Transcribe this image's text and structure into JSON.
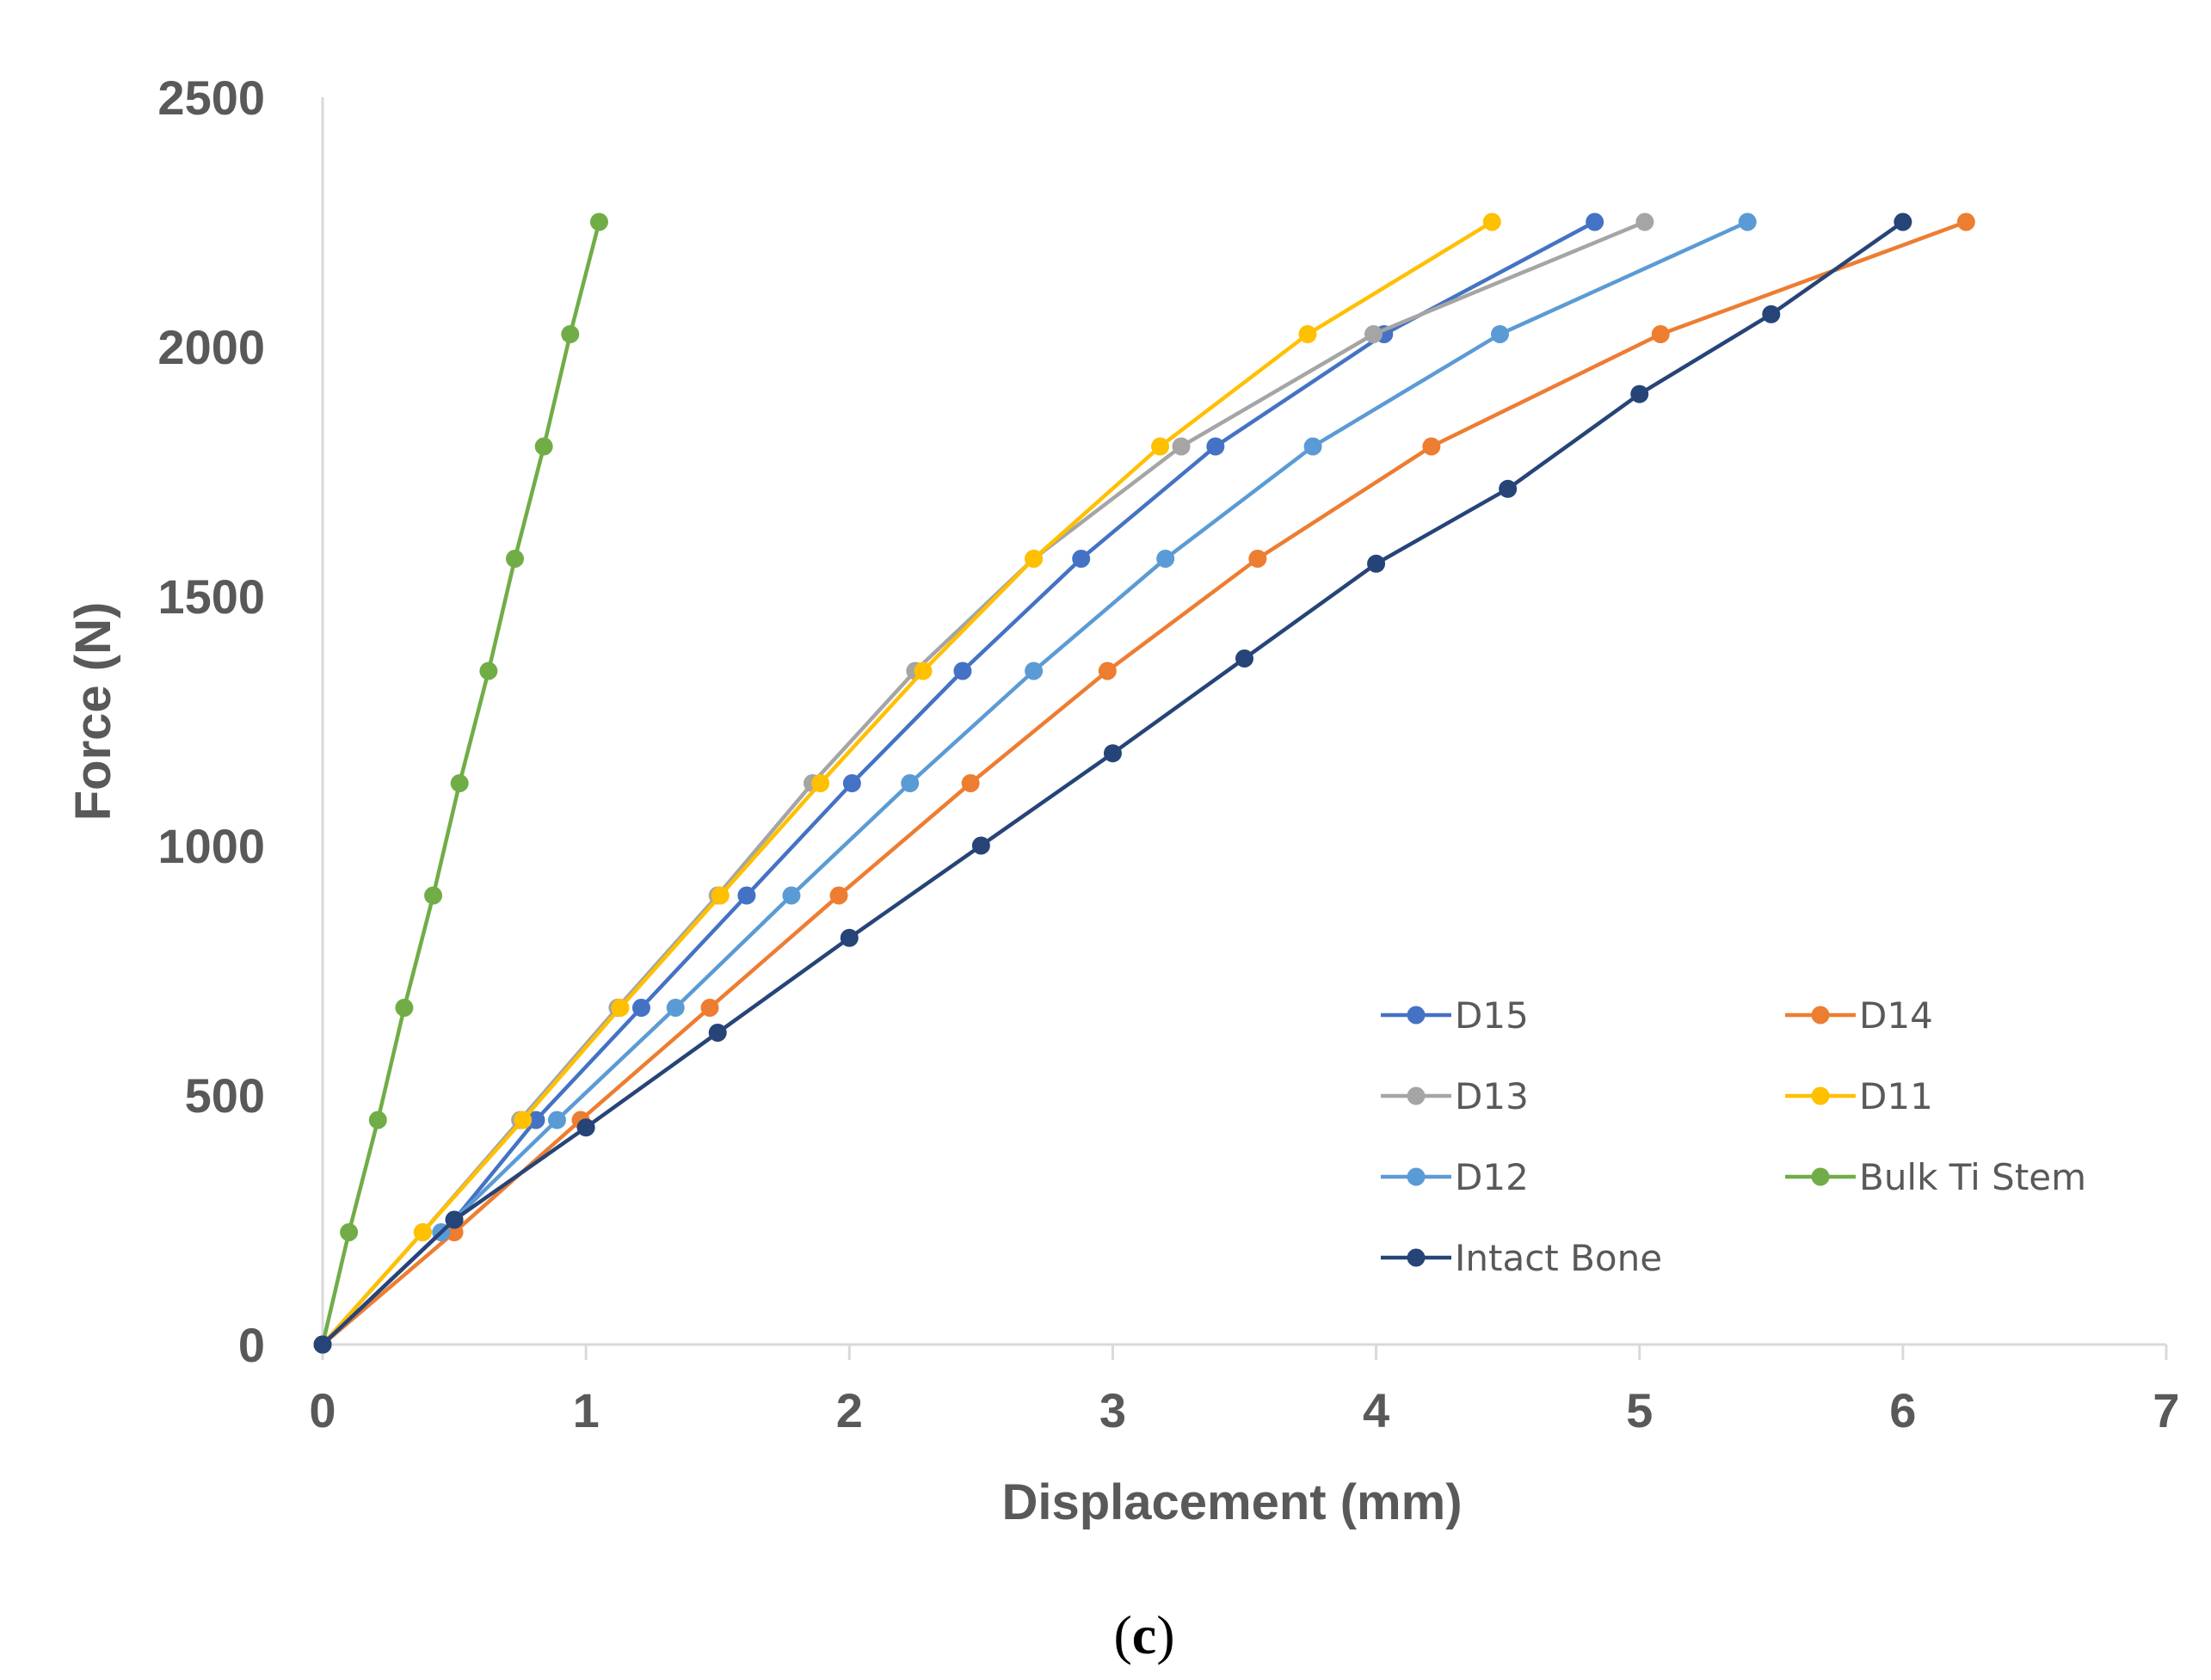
{
  "chart_data": {
    "type": "line",
    "title": "",
    "xlabel": "Displacement (mm)",
    "ylabel": "Force (N)",
    "xlim": [
      0,
      7
    ],
    "ylim": [
      0,
      2500
    ],
    "xticks": [
      0,
      1,
      2,
      3,
      4,
      5,
      6,
      7
    ],
    "yticks": [
      0,
      500,
      1000,
      1500,
      2000,
      2500
    ],
    "grid": false,
    "legend_position": "bottom-right",
    "caption": {
      "open": "(",
      "letter": "c",
      "close": ")"
    },
    "series": [
      {
        "name": "D15",
        "color": "#4472C4",
        "x": [
          0,
          0.5,
          0.81,
          1.21,
          1.61,
          2.01,
          2.43,
          2.88,
          3.39,
          4.03,
          4.83
        ],
        "y": [
          0,
          250,
          450,
          675,
          900,
          1125,
          1350,
          1575,
          1800,
          2025,
          2250
        ]
      },
      {
        "name": "D14",
        "color": "#ED7D31",
        "x": [
          0,
          0.5,
          0.98,
          1.47,
          1.96,
          2.46,
          2.98,
          3.55,
          4.21,
          5.08,
          6.24
        ],
        "y": [
          0,
          225,
          450,
          675,
          900,
          1125,
          1350,
          1575,
          1800,
          2025,
          2250
        ]
      },
      {
        "name": "D13",
        "color": "#A5A5A5",
        "x": [
          0,
          0.38,
          0.75,
          1.12,
          1.5,
          1.86,
          2.25,
          2.7,
          3.26,
          3.99,
          5.02
        ],
        "y": [
          0,
          225,
          450,
          675,
          900,
          1125,
          1350,
          1575,
          1800,
          2025,
          2250
        ]
      },
      {
        "name": "D11",
        "color": "#FFC000",
        "x": [
          0,
          0.38,
          0.76,
          1.13,
          1.51,
          1.89,
          2.28,
          2.7,
          3.18,
          3.74,
          4.44
        ],
        "y": [
          0,
          225,
          450,
          675,
          900,
          1125,
          1350,
          1575,
          1800,
          2025,
          2250
        ]
      },
      {
        "name": "D12",
        "color": "#5B9BD5",
        "x": [
          0,
          0.45,
          0.89,
          1.34,
          1.78,
          2.23,
          2.7,
          3.2,
          3.76,
          4.47,
          5.41
        ],
        "y": [
          0,
          225,
          450,
          675,
          900,
          1125,
          1350,
          1575,
          1800,
          2025,
          2250
        ]
      },
      {
        "name": "Bulk Ti Stem",
        "color": "#70AD47",
        "x": [
          0,
          0.1,
          0.21,
          0.31,
          0.42,
          0.52,
          0.63,
          0.73,
          0.84,
          0.94,
          1.05
        ],
        "y": [
          0,
          225,
          450,
          675,
          900,
          1125,
          1350,
          1575,
          1800,
          2025,
          2250
        ]
      },
      {
        "name": "Intact Bone",
        "color": "#264478",
        "x": [
          0,
          0.5,
          1.0,
          1.5,
          2.0,
          2.5,
          3.0,
          3.5,
          4.0,
          4.5,
          5.0,
          5.5,
          6.0
        ],
        "y": [
          0,
          250,
          435,
          625,
          815,
          1000,
          1185,
          1375,
          1565,
          1715,
          1905,
          2065,
          2250
        ]
      }
    ]
  }
}
